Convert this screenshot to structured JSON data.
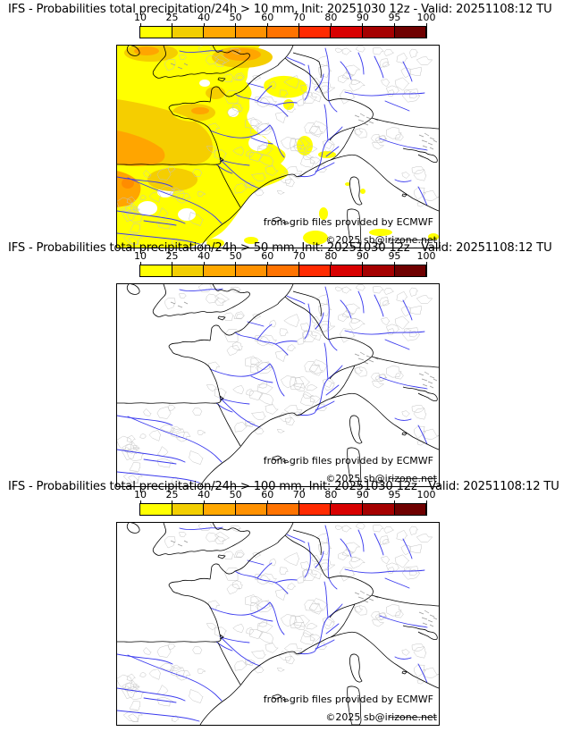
{
  "page": {
    "background": "#ffffff"
  },
  "panels": [
    {
      "title": "IFS - Probabilities total precipitation/24h > 10 mm, Init: 20251030 12z - Valid: 20251108:12 TU",
      "threshold": "10 mm",
      "has_probability_overlay": true
    },
    {
      "title": "IFS - Probabilities total precipitation/24h > 50 mm, Init: 20251030 12z - Valid: 20251108:12 TU",
      "threshold": "50 mm",
      "has_probability_overlay": false
    },
    {
      "title": "IFS - Probabilities total precipitation/24h > 100 mm, Init: 20251030 12z - Valid: 20251108:12 TU",
      "threshold": "100 mm",
      "has_probability_overlay": false
    }
  ],
  "colorbar": {
    "unit": "%",
    "ticks": [
      "10",
      "25",
      "40",
      "50",
      "60",
      "70",
      "80",
      "90",
      "95",
      "100"
    ],
    "colors": [
      "#ffff00",
      "#f2ce00",
      "#ffa800",
      "#ff9100",
      "#ff7300",
      "#ff2a00",
      "#d80000",
      "#a50000",
      "#6f0000"
    ]
  },
  "map": {
    "attribution_line1": "from grib files provided by ECMWF",
    "attribution_line2": "©2025 sb@irizone.net",
    "colors": {
      "river": "#3a3aee",
      "coast": "#000000",
      "admin": "#c4c4c4",
      "relief": "#999999",
      "prob_10_25": "#ffff00",
      "prob_25_40": "#f5ce00",
      "prob_40_50": "#ffa500",
      "prob_50_60": "#ff8c00"
    }
  }
}
